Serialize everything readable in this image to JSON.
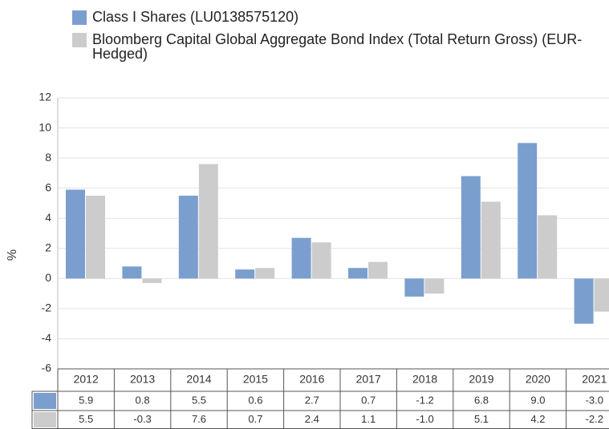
{
  "chart_data": {
    "type": "bar",
    "categories": [
      "2012",
      "2013",
      "2014",
      "2015",
      "2016",
      "2017",
      "2018",
      "2019",
      "2020",
      "2021"
    ],
    "series": [
      {
        "name": "Class I Shares (LU0138575120)",
        "color": "#7a9fcf",
        "values": [
          5.9,
          0.8,
          5.5,
          0.6,
          2.7,
          0.7,
          -1.2,
          6.8,
          9.0,
          -3.0
        ],
        "value_labels": [
          "5.9",
          "0.8",
          "5.5",
          "0.6",
          "2.7",
          "0.7",
          "-1.2",
          "6.8",
          "9.0",
          "-3.0"
        ]
      },
      {
        "name": "Bloomberg Capital Global Aggregate Bond Index (Total Return Gross) (EUR-Hedged)",
        "color": "#cccccc",
        "values": [
          5.5,
          -0.3,
          7.6,
          0.7,
          2.4,
          1.1,
          -1.0,
          5.1,
          4.2,
          -2.2
        ],
        "value_labels": [
          "5.5",
          "-0.3",
          "7.6",
          "0.7",
          "2.4",
          "1.1",
          "-1.0",
          "5.1",
          "4.2",
          "-2.2"
        ]
      }
    ],
    "y_label": "%",
    "ylim": [
      -6,
      12
    ],
    "yticks": [
      -6,
      -4,
      -2,
      0,
      2,
      4,
      6,
      8,
      10,
      12
    ],
    "grid": true
  }
}
